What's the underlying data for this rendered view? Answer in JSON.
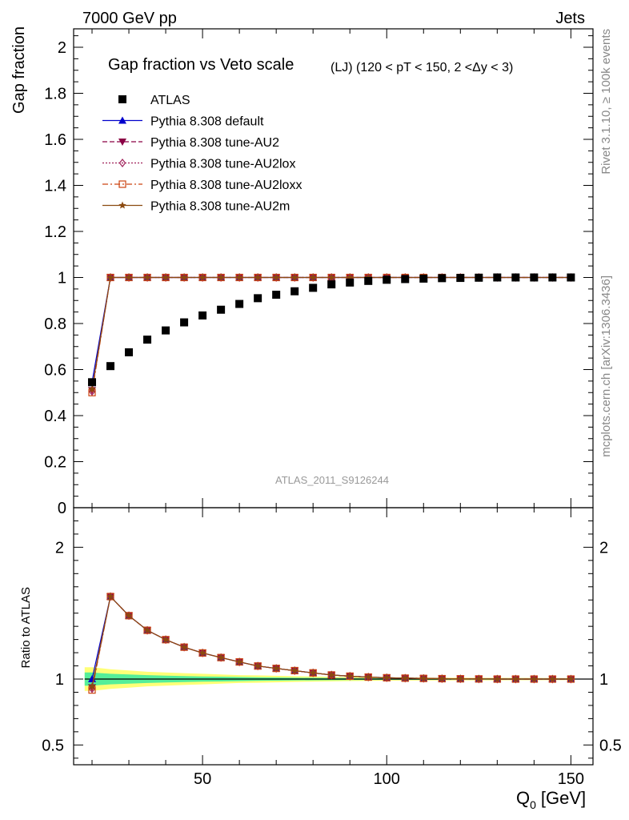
{
  "header": {
    "left": "7000 GeV pp",
    "right": "Jets"
  },
  "side_labels": {
    "top": "Rivet 3.1.10, ≥ 100k events",
    "bottom": "mcplots.cern.ch [arXiv:1306.3436]"
  },
  "watermark": "ATLAS_2011_S9126244",
  "chart_data": [
    {
      "type": "scatter",
      "panel": "main",
      "title": "Gap fraction vs Veto scale",
      "subtitle": "(LJ) (120 < pT < 150, 2 <Δy < 3)",
      "xlabel": "Q",
      "xlabel_sub": "0",
      "xlabel_unit": "[GeV]",
      "ylabel": "Gap fraction",
      "xlim": [
        15,
        156
      ],
      "ylim": [
        0,
        2.08
      ],
      "x_ticks": [
        "50",
        "100",
        "150"
      ],
      "y_ticks": [
        "0",
        "0.2",
        "0.4",
        "0.6",
        "0.8",
        "1",
        "1.2",
        "1.4",
        "1.6",
        "1.8",
        "2"
      ],
      "legend_position": "top-left",
      "x": [
        20,
        25,
        30,
        35,
        40,
        45,
        50,
        55,
        60,
        65,
        70,
        75,
        80,
        85,
        90,
        95,
        100,
        105,
        110,
        115,
        120,
        125,
        130,
        135,
        140,
        145,
        150
      ],
      "series": [
        {
          "name": "ATLAS",
          "color": "#000000",
          "marker": "square",
          "line": "none",
          "values": [
            0.545,
            0.615,
            0.675,
            0.73,
            0.77,
            0.805,
            0.835,
            0.86,
            0.885,
            0.91,
            0.925,
            0.94,
            0.955,
            0.97,
            0.978,
            0.985,
            0.99,
            0.993,
            0.995,
            0.997,
            0.998,
            0.999,
            1.0,
            1.0,
            1.0,
            1.0,
            1.0
          ]
        },
        {
          "name": "Pythia 8.308 default",
          "color": "#0000cc",
          "marker": "triangle-up",
          "line": "solid",
          "values": [
            0.545,
            1.0,
            1.0,
            1.0,
            1.0,
            1.0,
            1.0,
            1.0,
            1.0,
            1.0,
            1.0,
            1.0,
            1.0,
            1.0,
            1.0,
            1.0,
            1.0,
            1.0,
            1.0,
            1.0,
            1.0,
            1.0,
            1.0,
            1.0,
            1.0,
            1.0,
            1.0
          ]
        },
        {
          "name": "Pythia 8.308 tune-AU2",
          "color": "#8b0045",
          "marker": "triangle-down",
          "line": "dashed",
          "values": [
            0.51,
            1.0,
            1.0,
            1.0,
            1.0,
            1.0,
            1.0,
            1.0,
            1.0,
            1.0,
            1.0,
            1.0,
            1.0,
            1.0,
            1.0,
            1.0,
            1.0,
            1.0,
            1.0,
            1.0,
            1.0,
            1.0,
            1.0,
            1.0,
            1.0,
            1.0,
            1.0
          ]
        },
        {
          "name": "Pythia 8.308 tune-AU2lox",
          "color": "#a0205a",
          "marker": "diamond-open",
          "line": "dotted",
          "values": [
            0.505,
            1.0,
            1.0,
            1.0,
            1.0,
            1.0,
            1.0,
            1.0,
            1.0,
            1.0,
            1.0,
            1.0,
            1.0,
            1.0,
            1.0,
            1.0,
            1.0,
            1.0,
            1.0,
            1.0,
            1.0,
            1.0,
            1.0,
            1.0,
            1.0,
            1.0,
            1.0
          ]
        },
        {
          "name": "Pythia 8.308 tune-AU2loxx",
          "color": "#cc4410",
          "marker": "square-open",
          "line": "dashdot",
          "values": [
            0.5,
            1.0,
            1.0,
            1.0,
            1.0,
            1.0,
            1.0,
            1.0,
            1.0,
            1.0,
            1.0,
            1.0,
            1.0,
            1.0,
            1.0,
            1.0,
            1.0,
            1.0,
            1.0,
            1.0,
            1.0,
            1.0,
            1.0,
            1.0,
            1.0,
            1.0,
            1.0
          ]
        },
        {
          "name": "Pythia 8.308 tune-AU2m",
          "color": "#8b4a10",
          "marker": "star",
          "line": "solid",
          "values": [
            0.515,
            1.0,
            1.0,
            1.0,
            1.0,
            1.0,
            1.0,
            1.0,
            1.0,
            1.0,
            1.0,
            1.0,
            1.0,
            1.0,
            1.0,
            1.0,
            1.0,
            1.0,
            1.0,
            1.0,
            1.0,
            1.0,
            1.0,
            1.0,
            1.0,
            1.0,
            1.0
          ]
        }
      ]
    },
    {
      "type": "line",
      "panel": "ratio",
      "ylabel": "Ratio to ATLAS",
      "ylim": [
        0.35,
        2.3
      ],
      "y_ticks": [
        "0.5",
        "1",
        "2"
      ],
      "band_x": [
        18,
        20,
        25,
        30,
        35,
        40,
        45,
        50,
        55,
        60,
        65,
        70,
        75,
        80,
        90,
        100,
        120,
        150
      ],
      "band_yellow_halfwidth": [
        0.09,
        0.09,
        0.075,
        0.065,
        0.055,
        0.05,
        0.045,
        0.04,
        0.035,
        0.03,
        0.028,
        0.025,
        0.022,
        0.02,
        0.015,
        0.012,
        0.01,
        0.008
      ],
      "band_green_halfwidth": [
        0.05,
        0.05,
        0.04,
        0.035,
        0.03,
        0.026,
        0.023,
        0.02,
        0.018,
        0.016,
        0.014,
        0.012,
        0.011,
        0.01,
        0.008,
        0.006,
        0.005,
        0.004
      ],
      "band_colors": [
        "#ffff77",
        "#55ee99"
      ],
      "x": [
        20,
        25,
        30,
        35,
        40,
        45,
        50,
        55,
        60,
        65,
        70,
        75,
        80,
        85,
        90,
        95,
        100,
        105,
        110,
        115,
        120,
        125,
        130,
        135,
        140,
        145,
        150
      ],
      "series": [
        {
          "name": "Pythia 8.308 default",
          "color": "#0000cc",
          "marker": "triangle-up",
          "line": "solid",
          "values": [
            1.0,
            1.626,
            1.481,
            1.37,
            1.299,
            1.242,
            1.198,
            1.163,
            1.13,
            1.099,
            1.081,
            1.064,
            1.047,
            1.031,
            1.022,
            1.015,
            1.01,
            1.007,
            1.005,
            1.003,
            1.002,
            1.001,
            1.0,
            1.0,
            1.0,
            1.0,
            1.0
          ]
        },
        {
          "name": "Pythia 8.308 tune-AU2",
          "color": "#8b0045",
          "marker": "triangle-down",
          "line": "dashed",
          "values": [
            0.936,
            1.626,
            1.481,
            1.37,
            1.299,
            1.242,
            1.198,
            1.163,
            1.13,
            1.099,
            1.081,
            1.064,
            1.047,
            1.031,
            1.022,
            1.015,
            1.01,
            1.007,
            1.005,
            1.003,
            1.002,
            1.001,
            1.0,
            1.0,
            1.0,
            1.0,
            1.0
          ]
        },
        {
          "name": "Pythia 8.308 tune-AU2lox",
          "color": "#a0205a",
          "marker": "diamond-open",
          "line": "dotted",
          "values": [
            0.927,
            1.626,
            1.481,
            1.37,
            1.299,
            1.242,
            1.198,
            1.163,
            1.13,
            1.099,
            1.081,
            1.064,
            1.047,
            1.031,
            1.022,
            1.015,
            1.01,
            1.007,
            1.005,
            1.003,
            1.002,
            1.001,
            1.0,
            1.0,
            1.0,
            1.0,
            1.0
          ]
        },
        {
          "name": "Pythia 8.308 tune-AU2loxx",
          "color": "#cc4410",
          "marker": "square-open",
          "line": "dashdot",
          "values": [
            0.917,
            1.626,
            1.481,
            1.37,
            1.299,
            1.242,
            1.198,
            1.163,
            1.13,
            1.099,
            1.081,
            1.064,
            1.047,
            1.031,
            1.022,
            1.015,
            1.01,
            1.007,
            1.005,
            1.003,
            1.002,
            1.001,
            1.0,
            1.0,
            1.0,
            1.0,
            1.0
          ]
        },
        {
          "name": "Pythia 8.308 tune-AU2m",
          "color": "#8b4a10",
          "marker": "star",
          "line": "solid",
          "values": [
            0.945,
            1.626,
            1.481,
            1.37,
            1.299,
            1.242,
            1.198,
            1.163,
            1.13,
            1.099,
            1.081,
            1.064,
            1.047,
            1.031,
            1.022,
            1.015,
            1.01,
            1.007,
            1.005,
            1.003,
            1.002,
            1.001,
            1.0,
            1.0,
            1.0,
            1.0,
            1.0
          ]
        }
      ]
    }
  ]
}
